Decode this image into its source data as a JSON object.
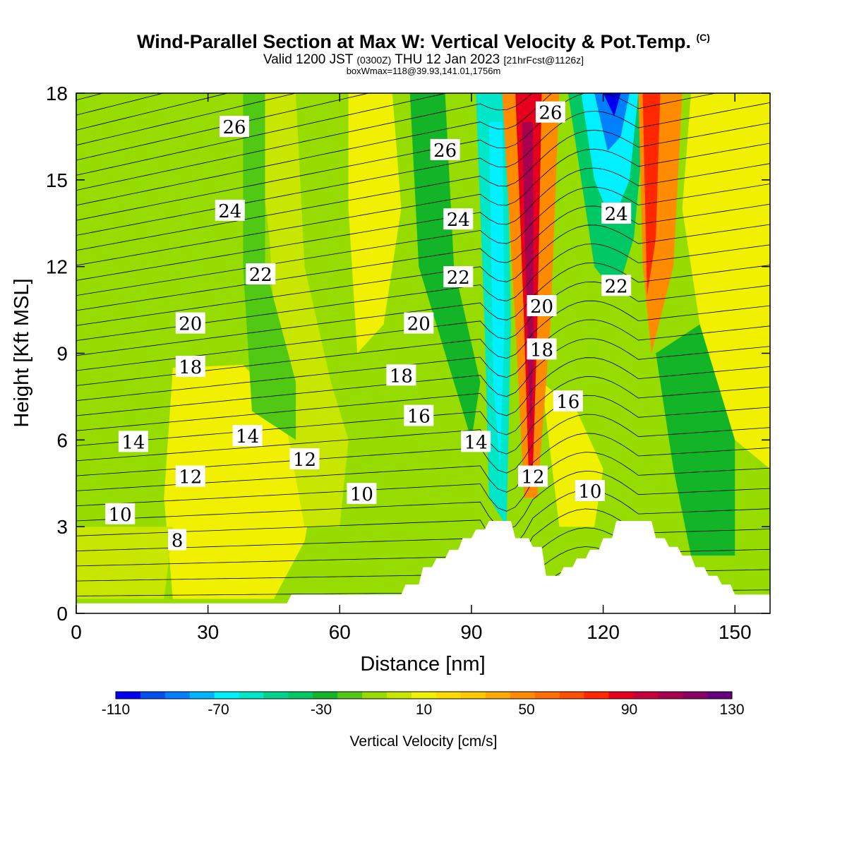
{
  "header": {
    "title": "Wind-Parallel Section at Max W: Vertical Velocity & Pot.Temp.",
    "copyright": "(C)",
    "valid_prefix": "Valid 1200 JST",
    "valid_utc": "(0300Z)",
    "valid_date": "THU 12 Jan 2023",
    "forecast": "[21hrFcst@1126z]",
    "box_info": "boxWmax=118@39.93,141.01,1756m"
  },
  "chart_data": {
    "type": "heatmap",
    "xlabel": "Distance [nm]",
    "ylabel": "Height [Kft MSL]",
    "xlim": [
      0,
      158
    ],
    "ylim": [
      0,
      18
    ],
    "x_ticks": [
      "0",
      "30",
      "60",
      "90",
      "120",
      "150"
    ],
    "y_ticks": [
      "0",
      "3",
      "6",
      "9",
      "12",
      "15",
      "18"
    ],
    "colorbar": {
      "label": "Vertical Velocity [cm/s]",
      "tick_labels": [
        "-110",
        "-70",
        "-30",
        "10",
        "50",
        "90",
        "130"
      ],
      "levels": [
        -110,
        -100,
        -90,
        -80,
        -70,
        -60,
        -50,
        -40,
        -30,
        -20,
        -10,
        0,
        10,
        20,
        30,
        40,
        50,
        60,
        70,
        80,
        90,
        100,
        110,
        120,
        130
      ],
      "colors": [
        "#0000f0",
        "#0050f0",
        "#0080ff",
        "#00b4ff",
        "#00f0ff",
        "#00e6c8",
        "#00d28c",
        "#00c864",
        "#14b428",
        "#50c814",
        "#96dc00",
        "#c8e600",
        "#f0f000",
        "#ffdc00",
        "#ffc800",
        "#ffaa00",
        "#ff8c00",
        "#ff6e00",
        "#ff5000",
        "#ff2800",
        "#e6001e",
        "#c8003c",
        "#aa0050",
        "#8c0064",
        "#64007d"
      ]
    },
    "theta_contour_labels": [
      {
        "label": "26",
        "x": 36,
        "y": 16.8
      },
      {
        "label": "26",
        "x": 84,
        "y": 16.0
      },
      {
        "label": "26",
        "x": 108,
        "y": 17.3
      },
      {
        "label": "24",
        "x": 35,
        "y": 13.9
      },
      {
        "label": "24",
        "x": 87,
        "y": 13.6
      },
      {
        "label": "24",
        "x": 123,
        "y": 13.8
      },
      {
        "label": "22",
        "x": 42,
        "y": 11.7
      },
      {
        "label": "22",
        "x": 87,
        "y": 11.6
      },
      {
        "label": "22",
        "x": 123,
        "y": 11.3
      },
      {
        "label": "20",
        "x": 26,
        "y": 10.0
      },
      {
        "label": "20",
        "x": 78,
        "y": 10.0
      },
      {
        "label": "20",
        "x": 106,
        "y": 10.6
      },
      {
        "label": "18",
        "x": 26,
        "y": 8.5
      },
      {
        "label": "18",
        "x": 74,
        "y": 8.2
      },
      {
        "label": "18",
        "x": 106,
        "y": 9.1
      },
      {
        "label": "16",
        "x": 78,
        "y": 6.8
      },
      {
        "label": "16",
        "x": 112,
        "y": 7.3
      },
      {
        "label": "14",
        "x": 13,
        "y": 5.9
      },
      {
        "label": "14",
        "x": 39,
        "y": 6.1
      },
      {
        "label": "14",
        "x": 91,
        "y": 5.9
      },
      {
        "label": "12",
        "x": 26,
        "y": 4.7
      },
      {
        "label": "12",
        "x": 52,
        "y": 5.3
      },
      {
        "label": "12",
        "x": 104,
        "y": 4.7
      },
      {
        "label": "10",
        "x": 10,
        "y": 3.4
      },
      {
        "label": "10",
        "x": 65,
        "y": 4.1
      },
      {
        "label": "10",
        "x": 117,
        "y": 4.2
      },
      {
        "label": "8",
        "x": 23,
        "y": 2.5
      }
    ],
    "terrain": [
      {
        "x": 0,
        "h": 0.35
      },
      {
        "x": 48,
        "h": 0.35
      },
      {
        "x": 49,
        "h": 0.65
      },
      {
        "x": 74,
        "h": 0.65
      },
      {
        "x": 75,
        "h": 1.0
      },
      {
        "x": 78,
        "h": 1.0
      },
      {
        "x": 79,
        "h": 1.6
      },
      {
        "x": 81,
        "h": 1.6
      },
      {
        "x": 82,
        "h": 1.9
      },
      {
        "x": 84,
        "h": 1.9
      },
      {
        "x": 85,
        "h": 2.2
      },
      {
        "x": 87,
        "h": 2.2
      },
      {
        "x": 88,
        "h": 2.6
      },
      {
        "x": 90,
        "h": 2.6
      },
      {
        "x": 91,
        "h": 2.9
      },
      {
        "x": 93,
        "h": 2.9
      },
      {
        "x": 94,
        "h": 3.2
      },
      {
        "x": 99,
        "h": 3.2
      },
      {
        "x": 100,
        "h": 2.6
      },
      {
        "x": 103,
        "h": 2.6
      },
      {
        "x": 104,
        "h": 2.3
      },
      {
        "x": 106,
        "h": 2.3
      },
      {
        "x": 107,
        "h": 1.3
      },
      {
        "x": 110,
        "h": 1.3
      },
      {
        "x": 111,
        "h": 1.6
      },
      {
        "x": 113,
        "h": 1.6
      },
      {
        "x": 114,
        "h": 1.9
      },
      {
        "x": 116,
        "h": 1.9
      },
      {
        "x": 117,
        "h": 2.2
      },
      {
        "x": 119,
        "h": 2.2
      },
      {
        "x": 120,
        "h": 2.6
      },
      {
        "x": 122,
        "h": 2.6
      },
      {
        "x": 123,
        "h": 3.2
      },
      {
        "x": 131,
        "h": 3.2
      },
      {
        "x": 132,
        "h": 2.6
      },
      {
        "x": 134,
        "h": 2.6
      },
      {
        "x": 135,
        "h": 2.3
      },
      {
        "x": 137,
        "h": 2.3
      },
      {
        "x": 138,
        "h": 2.0
      },
      {
        "x": 140,
        "h": 2.0
      },
      {
        "x": 141,
        "h": 1.6
      },
      {
        "x": 143,
        "h": 1.6
      },
      {
        "x": 144,
        "h": 1.3
      },
      {
        "x": 146,
        "h": 1.3
      },
      {
        "x": 147,
        "h": 1.0
      },
      {
        "x": 149,
        "h": 1.0
      },
      {
        "x": 150,
        "h": 0.65
      },
      {
        "x": 155,
        "h": 0.65
      },
      {
        "x": 156,
        "h": 0.65
      },
      {
        "x": 158,
        "h": 0.65
      }
    ]
  }
}
